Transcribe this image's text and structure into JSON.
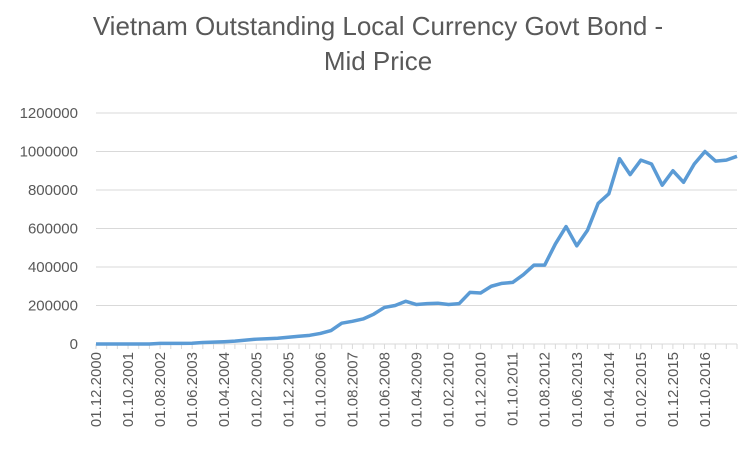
{
  "chart_data": {
    "type": "line",
    "title": "Vietnam Outstanding Local Currency Govt Bond - Mid Price",
    "categories": [
      "01.12.2000",
      null,
      null,
      "01.10.2001",
      null,
      null,
      "01.08.2002",
      null,
      null,
      "01.06.2003",
      null,
      null,
      "01.04.2004",
      null,
      null,
      "01.02.2005",
      null,
      null,
      "01.12.2005",
      null,
      null,
      "01.10.2006",
      null,
      null,
      "01.08.2007",
      null,
      null,
      "01.06.2008",
      null,
      null,
      "01.04.2009",
      null,
      null,
      "01.02.2010",
      null,
      null,
      "01.12.2010",
      null,
      null,
      "01.10.2011",
      null,
      null,
      "01.08.2012",
      null,
      null,
      "01.06.2013",
      null,
      null,
      "01.04.2014",
      null,
      null,
      "01.02.2015",
      null,
      null,
      "01.12.2015",
      null,
      null,
      "01.10.2016",
      null,
      null,
      null
    ],
    "series": [
      {
        "color": "#5b9bd5",
        "values": [
          0,
          0,
          0,
          0,
          0,
          0,
          3000,
          3000,
          3000,
          4000,
          8000,
          10000,
          12000,
          15000,
          20000,
          25000,
          27000,
          30000,
          35000,
          40000,
          45000,
          55000,
          70000,
          108000,
          118000,
          130000,
          155000,
          190000,
          200000,
          222000,
          205000,
          210000,
          212000,
          205000,
          210000,
          268000,
          265000,
          300000,
          315000,
          320000,
          360000,
          410000,
          410000,
          520000,
          610000,
          510000,
          590000,
          730000,
          780000,
          963000,
          880000,
          955000,
          935000,
          825000,
          900000,
          840000,
          935000,
          1000000,
          950000,
          955000,
          975000
        ]
      }
    ],
    "ylim": [
      0,
      1200000
    ],
    "yticks": [
      0,
      200000,
      400000,
      600000,
      800000,
      1000000,
      1200000
    ],
    "grid": true
  }
}
